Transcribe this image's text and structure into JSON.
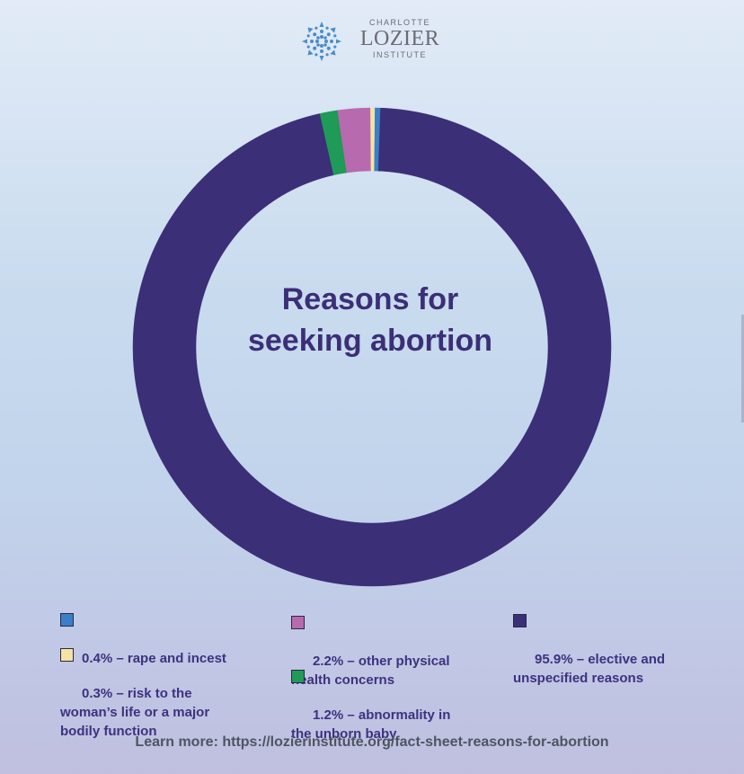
{
  "logo": {
    "line1": "CHARLOTTE",
    "line2": "LOZIER",
    "line3": "INSTITUTE"
  },
  "chart_data": {
    "type": "pie",
    "style": "donut",
    "title": "Reasons for seeking abortion",
    "slices": [
      {
        "label": "0.4% – rape and incest",
        "value": 0.4,
        "color": "#3a7fc8"
      },
      {
        "label": "0.3% – risk to the woman’s life or a major bodily function",
        "value": 0.3,
        "color": "#f4e3a3"
      },
      {
        "label": "2.2% – other physical health concerns",
        "value": 2.2,
        "color": "#b86aae"
      },
      {
        "label": "1.2% – abnormality in the unborn baby",
        "value": 1.2,
        "color": "#1f9a57"
      },
      {
        "label": "95.9% – elective and unspecified reasons",
        "value": 95.9,
        "color": "#3b2f78"
      }
    ],
    "legend_position": "bottom"
  },
  "legend": [
    {
      "text": "0.4% – rape and incest",
      "color": "#3a7fc8"
    },
    {
      "text": "0.3% – risk to the\nwoman’s life or a major\nbodily function",
      "color": "#f4e3a3"
    },
    {
      "text": "2.2% – other physical\nhealth concerns",
      "color": "#b86aae"
    },
    {
      "text": "1.2% – abnormality in\nthe unborn baby",
      "color": "#1f9a57"
    },
    {
      "text": "95.9% – elective and\nunspecified reasons",
      "color": "#3b2f78"
    }
  ],
  "footer": "Learn more: https://lozierinstitute.org/fact-sheet-reasons-for-abortion"
}
